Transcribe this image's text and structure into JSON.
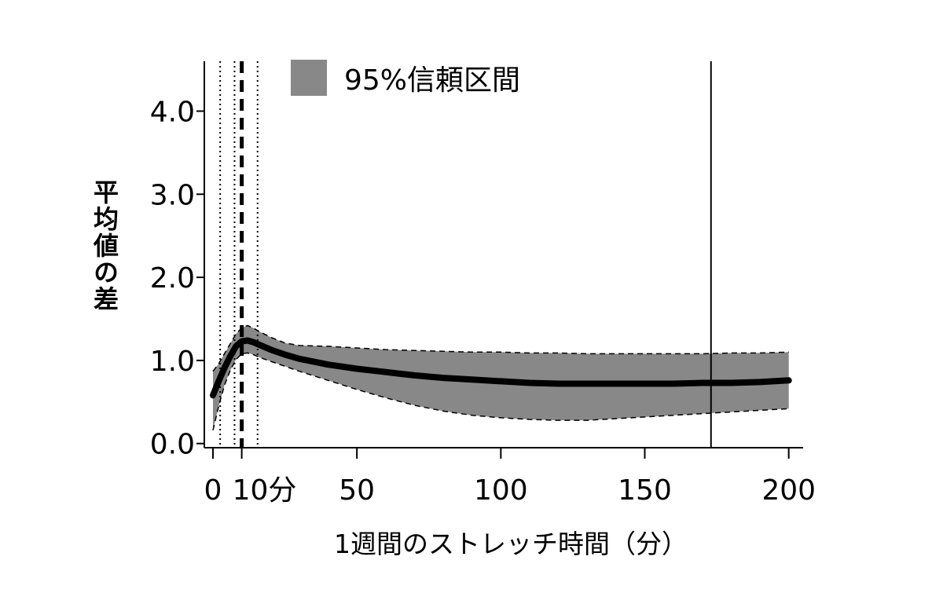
{
  "chart_data": {
    "type": "line",
    "title": "",
    "xlabel": "1週間のストレッチ時間（分）",
    "ylabel": "平均値の差",
    "xlim": [
      -3,
      205
    ],
    "ylim": [
      -0.05,
      4.6
    ],
    "x_ticks": [
      {
        "value": 0,
        "label": "0"
      },
      {
        "value": 10,
        "label": "10分"
      },
      {
        "value": 50,
        "label": "50"
      },
      {
        "value": 100,
        "label": "100"
      },
      {
        "value": 150,
        "label": "150"
      },
      {
        "value": 200,
        "label": "200"
      }
    ],
    "y_ticks": [
      {
        "value": 0,
        "label": "0.0"
      },
      {
        "value": 1,
        "label": "1.0"
      },
      {
        "value": 2,
        "label": "2.0"
      },
      {
        "value": 3,
        "label": "3.0"
      },
      {
        "value": 4,
        "label": "4.0"
      }
    ],
    "grid": false,
    "legend": {
      "position": "top-left",
      "label": "95%信頼区間"
    },
    "series": [
      {
        "role": "estimate",
        "x": [
          0,
          2,
          4,
          6,
          8,
          10,
          12,
          14,
          16,
          20,
          25,
          30,
          40,
          50,
          60,
          70,
          80,
          90,
          100,
          110,
          120,
          130,
          140,
          150,
          160,
          170,
          180,
          190,
          200
        ],
        "y": [
          0.58,
          0.75,
          0.91,
          1.05,
          1.17,
          1.23,
          1.24,
          1.22,
          1.19,
          1.13,
          1.07,
          1.02,
          0.95,
          0.9,
          0.86,
          0.82,
          0.79,
          0.77,
          0.75,
          0.73,
          0.72,
          0.72,
          0.72,
          0.72,
          0.72,
          0.73,
          0.73,
          0.74,
          0.76
        ]
      },
      {
        "role": "ci_upper",
        "x": [
          0,
          2,
          4,
          6,
          8,
          10,
          12,
          14,
          16,
          20,
          25,
          30,
          40,
          50,
          60,
          70,
          80,
          90,
          100,
          110,
          120,
          130,
          140,
          150,
          160,
          170,
          180,
          190,
          200
        ],
        "y": [
          0.87,
          0.96,
          1.08,
          1.2,
          1.32,
          1.39,
          1.42,
          1.39,
          1.35,
          1.28,
          1.21,
          1.18,
          1.17,
          1.15,
          1.13,
          1.12,
          1.11,
          1.1,
          1.1,
          1.09,
          1.09,
          1.08,
          1.08,
          1.08,
          1.08,
          1.08,
          1.09,
          1.09,
          1.1
        ]
      },
      {
        "role": "ci_lower",
        "x": [
          0,
          2,
          4,
          6,
          8,
          10,
          12,
          14,
          16,
          20,
          25,
          30,
          40,
          50,
          60,
          70,
          80,
          90,
          100,
          110,
          120,
          130,
          140,
          150,
          160,
          170,
          180,
          190,
          200
        ],
        "y": [
          0.16,
          0.45,
          0.7,
          0.88,
          1.01,
          1.08,
          1.09,
          1.07,
          1.04,
          0.99,
          0.93,
          0.87,
          0.76,
          0.65,
          0.55,
          0.46,
          0.39,
          0.34,
          0.31,
          0.29,
          0.28,
          0.28,
          0.3,
          0.32,
          0.34,
          0.36,
          0.38,
          0.4,
          0.42
        ]
      }
    ],
    "reference_lines": [
      {
        "x": 2.5,
        "style": "dotted"
      },
      {
        "x": 7.5,
        "style": "dotted"
      },
      {
        "x": 10,
        "style": "thick-dashed"
      },
      {
        "x": 15.5,
        "style": "dotted"
      },
      {
        "x": 173,
        "style": "solid"
      }
    ],
    "colors": {
      "band": "#888888",
      "line": "#000000"
    }
  }
}
